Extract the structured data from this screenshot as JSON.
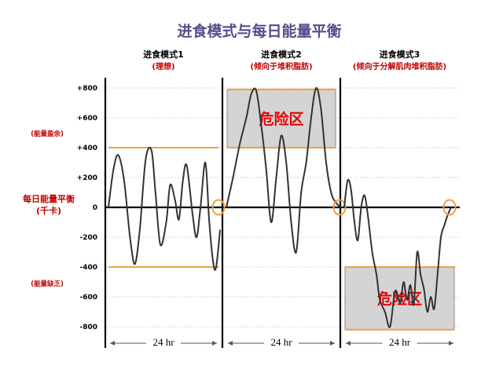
{
  "chart_data": {
    "type": "line",
    "title": "进食模式与每日能量平衡",
    "ylabel": [
      "每日能量平衡",
      "(千卡)"
    ],
    "yticks": [
      "+800",
      "+600",
      "+400",
      "+200",
      "0",
      "-200",
      "-400",
      "-600",
      "-800"
    ],
    "ylim": [
      -900,
      800
    ],
    "side_labels": {
      "surplus": "(能量盈余)",
      "deficit": "(能量缺乏)"
    },
    "grid": true,
    "panels": [
      {
        "header": "进食模式1",
        "subheader": "(理想)",
        "duration": "24 hr",
        "x": [
          0,
          5,
          10,
          16,
          22,
          27,
          32,
          38,
          44,
          48,
          53,
          59,
          63,
          68,
          72,
          76,
          80,
          86,
          90,
          94,
          99,
          103,
          107,
          110,
          114
        ],
        "y": [
          0,
          250,
          350,
          180,
          -200,
          -380,
          -150,
          320,
          380,
          100,
          -250,
          -100,
          150,
          50,
          -80,
          180,
          280,
          -50,
          -200,
          0,
          300,
          -100,
          -370,
          -400,
          -150
        ],
        "bounds": [
          400,
          -400
        ]
      },
      {
        "header": "进食模式2",
        "subheader": "(倾向于堆积脂肪)",
        "duration": "24 hr",
        "x": [
          0,
          8,
          16,
          24,
          30,
          36,
          42,
          48,
          54,
          60,
          66,
          72,
          78,
          84,
          90,
          96,
          102,
          108,
          114,
          120,
          126,
          132,
          138
        ],
        "y": [
          0,
          200,
          420,
          600,
          760,
          780,
          550,
          250,
          -100,
          200,
          480,
          300,
          -100,
          -300,
          100,
          300,
          600,
          800,
          650,
          300,
          100,
          30,
          0
        ],
        "danger": {
          "label": "危险区",
          "ymin": 400,
          "ymax": 790
        }
      },
      {
        "header": "进食模式3",
        "subheader": "(倾向于分解肌肉堆积脂肪)",
        "duration": "24 hr",
        "x": [
          0,
          4,
          8,
          12,
          16,
          20,
          24,
          28,
          33,
          38,
          42,
          48,
          54,
          60,
          66,
          70,
          74,
          78,
          82,
          86,
          90,
          94,
          98,
          102,
          106,
          110,
          114,
          118,
          122,
          126
        ],
        "y": [
          0,
          180,
          120,
          -100,
          -220,
          0,
          80,
          -60,
          -300,
          -450,
          -620,
          -700,
          -800,
          -560,
          -640,
          -500,
          -620,
          -520,
          -650,
          -300,
          -450,
          -550,
          -700,
          -600,
          -680,
          -450,
          -200,
          -120,
          -50,
          0
        ],
        "danger": {
          "label": "危险区",
          "ymin": -820,
          "ymax": -400
        }
      }
    ]
  }
}
